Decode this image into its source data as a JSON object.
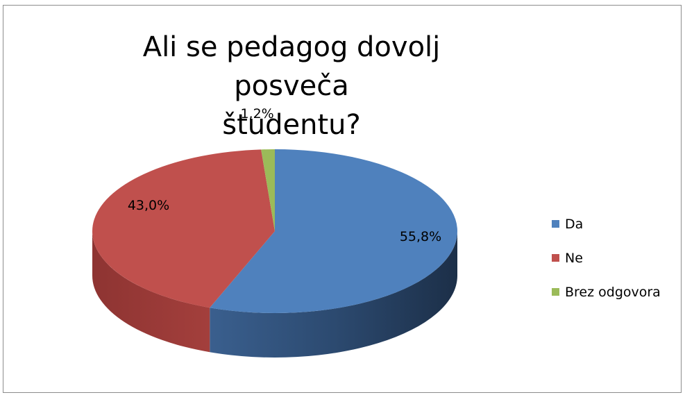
{
  "chart_data": {
    "type": "pie",
    "style": "3d",
    "title": "Ali se pedagog dovolj posveča študentu?",
    "title_lines": [
      "Ali se pedagog dovolj posveča",
      "študentu?"
    ],
    "slices": [
      {
        "name": "Da",
        "value": 55.8,
        "label": "55,8%",
        "color": "#4f81bd"
      },
      {
        "name": "Ne",
        "value": 43.0,
        "label": "43,0%",
        "color": "#c0504d"
      },
      {
        "name": "Brez odgovora",
        "value": 1.2,
        "label": "1,2%",
        "color": "#9bbb59"
      }
    ],
    "legend_position": "right"
  }
}
